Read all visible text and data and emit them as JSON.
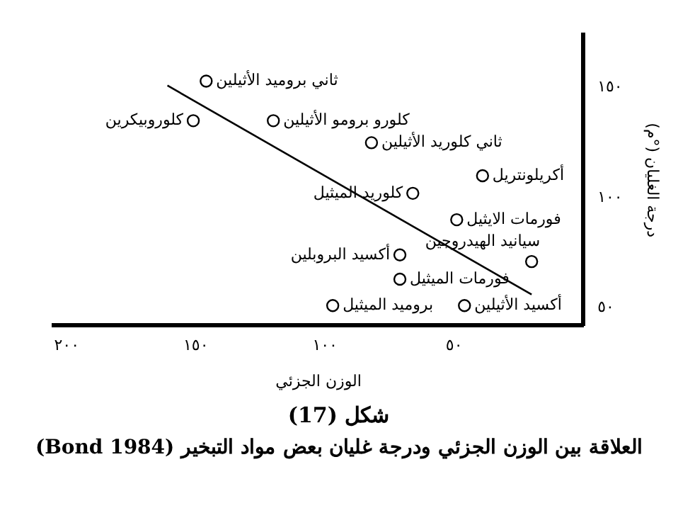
{
  "chart_data": {
    "type": "scatter",
    "title": "شكل (17)",
    "subtitle": "العلاقة بين الوزن الجزئي ودرجة غليان بعض مواد التبخير (Bond 1984)",
    "xlabel": "الوزن الجزئي",
    "ylabel": "درجة الغليان (°م)",
    "xlim": [
      205,
      0
    ],
    "ylim": [
      42,
      174
    ],
    "xticks": [
      {
        "value": 200,
        "label": "٢٠٠"
      },
      {
        "value": 150,
        "label": "١٥٠"
      },
      {
        "value": 100,
        "label": "١٠٠"
      },
      {
        "value": 50,
        "label": "٥٠"
      }
    ],
    "yticks": [
      {
        "value": 50,
        "label": "٥٠"
      },
      {
        "value": 100,
        "label": "١٠٠"
      },
      {
        "value": 150,
        "label": "١٥٠"
      }
    ],
    "grid": false,
    "legend": false,
    "series": [
      {
        "color": "#000000",
        "marker": "circle",
        "x": [
          146,
          151,
          120,
          82,
          39,
          66,
          49,
          20,
          71,
          71,
          97,
          46
        ],
        "values": [
          153,
          135,
          135,
          125,
          110,
          102,
          90,
          71,
          74,
          63,
          51,
          51
        ]
      },
      {
        "type": "line",
        "color": "#000000",
        "x": [
          161,
          20
        ],
        "values": [
          151,
          56
        ]
      }
    ],
    "annotations": [
      {
        "text": "ثاني بروميد الأثيلين",
        "x": 146,
        "y": 153
      },
      {
        "text": "كلوروبيكرين",
        "x": 151,
        "y": 135
      },
      {
        "text": "كلورو برومو الأثيلين",
        "x": 120,
        "y": 135
      },
      {
        "text": "ثاني كلوريد الأثيلين",
        "x": 82,
        "y": 125
      },
      {
        "text": "أكريلونتريل",
        "x": 39,
        "y": 110
      },
      {
        "text": "كلوريد الميثيل",
        "x": 66,
        "y": 102
      },
      {
        "text": "فورمات الايثيل",
        "x": 49,
        "y": 90
      },
      {
        "text": "سيانيد الهيدروجين",
        "x": 20,
        "y": 71
      },
      {
        "text": "أكسيد البروبلين",
        "x": 71,
        "y": 74
      },
      {
        "text": "فورمات الميثيل",
        "x": 71,
        "y": 63
      },
      {
        "text": "بروميد الميثيل",
        "x": 97,
        "y": 51
      },
      {
        "text": "أكسيد الأثيلين",
        "x": 46,
        "y": 51
      }
    ]
  }
}
